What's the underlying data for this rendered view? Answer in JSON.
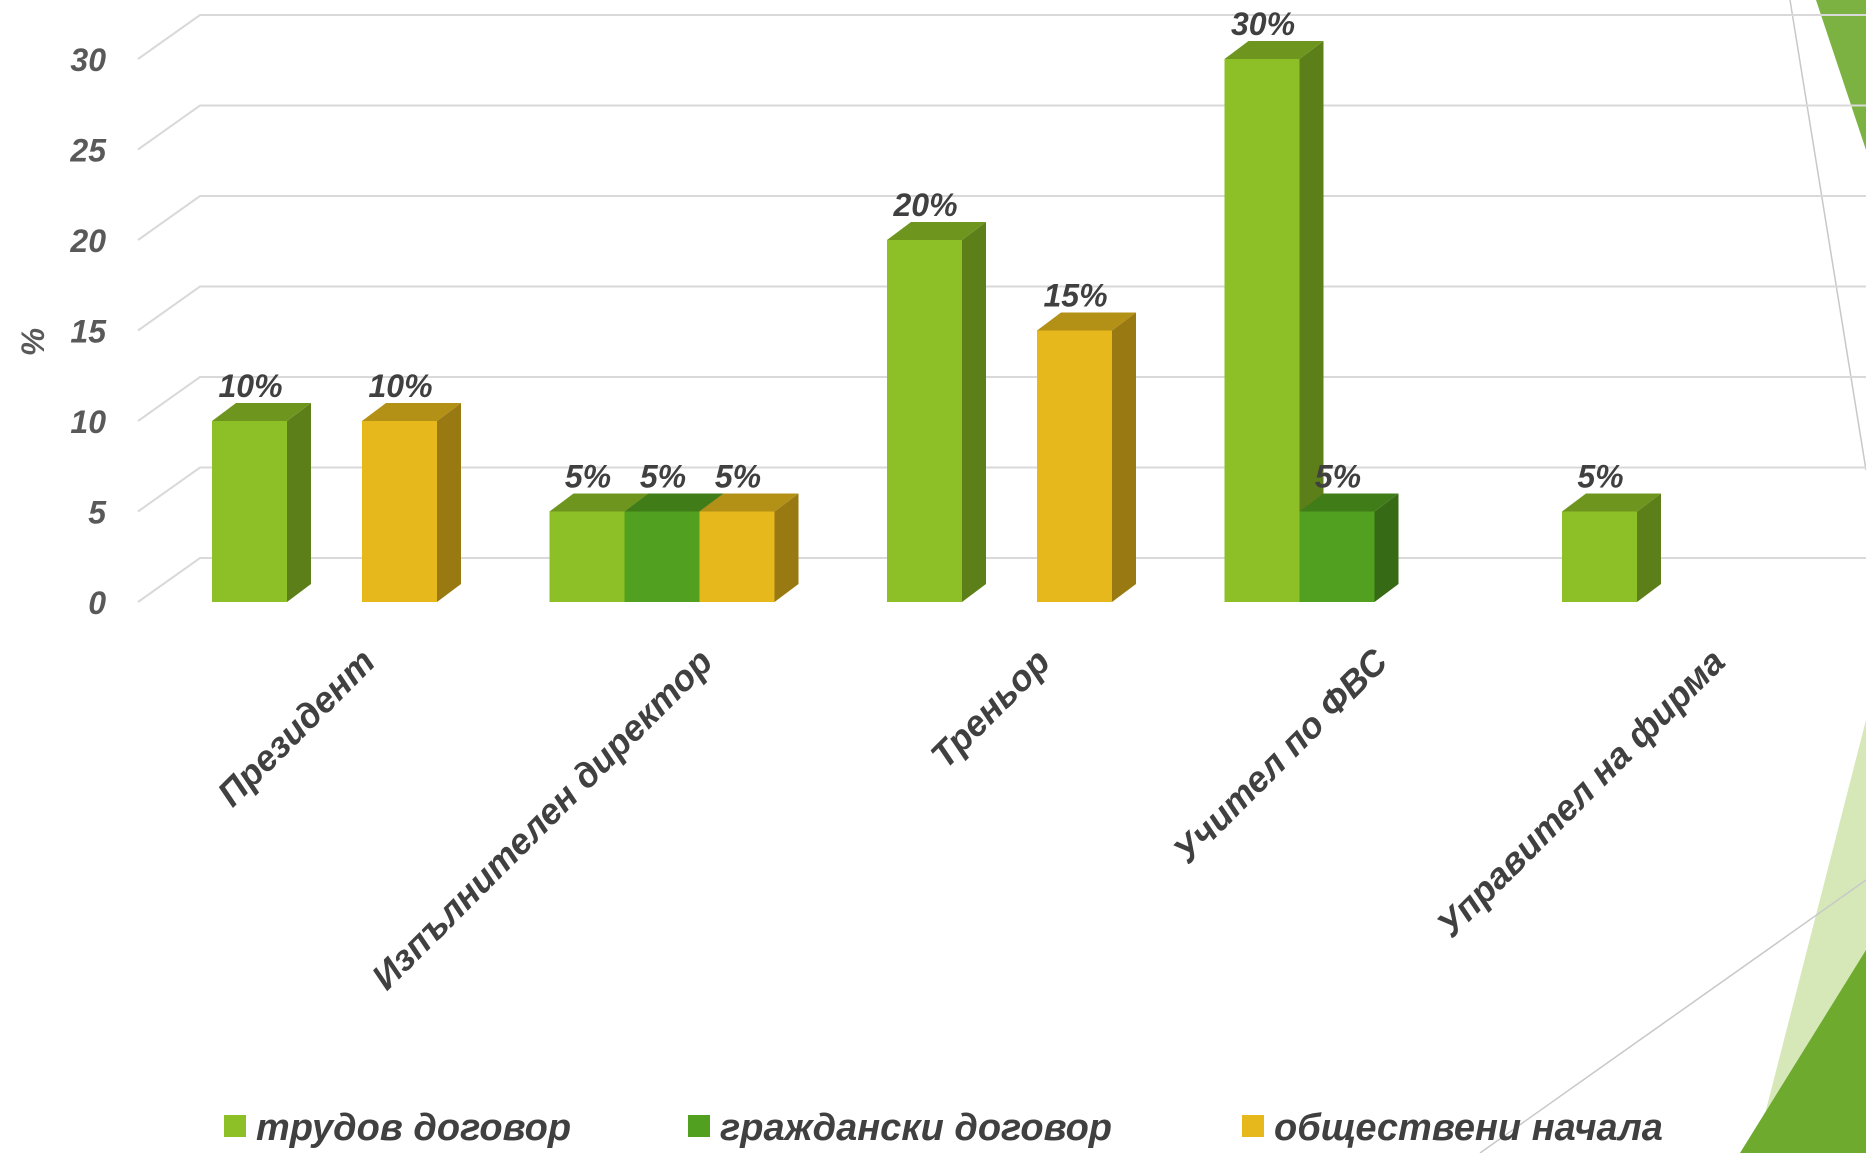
{
  "chart_data": {
    "type": "bar",
    "title": "",
    "xlabel": "",
    "ylabel": "%",
    "ylim": [
      0,
      30
    ],
    "yticks": [
      0,
      5,
      10,
      15,
      20,
      25,
      30
    ],
    "grid": true,
    "legend_position": "bottom",
    "categories": [
      "Президент",
      "Изпълнителен директор",
      "Треньор",
      "Учител по ФВС",
      "Управител на фирма"
    ],
    "series": [
      {
        "name": "трудов договор",
        "color": "#8DC026",
        "values": [
          10,
          5,
          20,
          30,
          5
        ]
      },
      {
        "name": "граждански договор",
        "color": "#52A020",
        "values": [
          null,
          5,
          null,
          5,
          null
        ]
      },
      {
        "name": "обществени начала",
        "color": "#E6B81C",
        "values": [
          10,
          5,
          15,
          null,
          null
        ]
      }
    ],
    "value_labels": [
      [
        "10%",
        "5%",
        "20%",
        "30%",
        "5%"
      ],
      [
        null,
        "5%",
        null,
        "5%",
        null
      ],
      [
        "10%",
        "5%",
        "15%",
        null,
        null
      ]
    ]
  },
  "decor": {
    "accent_colors": [
      "#6EAA2E",
      "#D6E8B8"
    ]
  }
}
